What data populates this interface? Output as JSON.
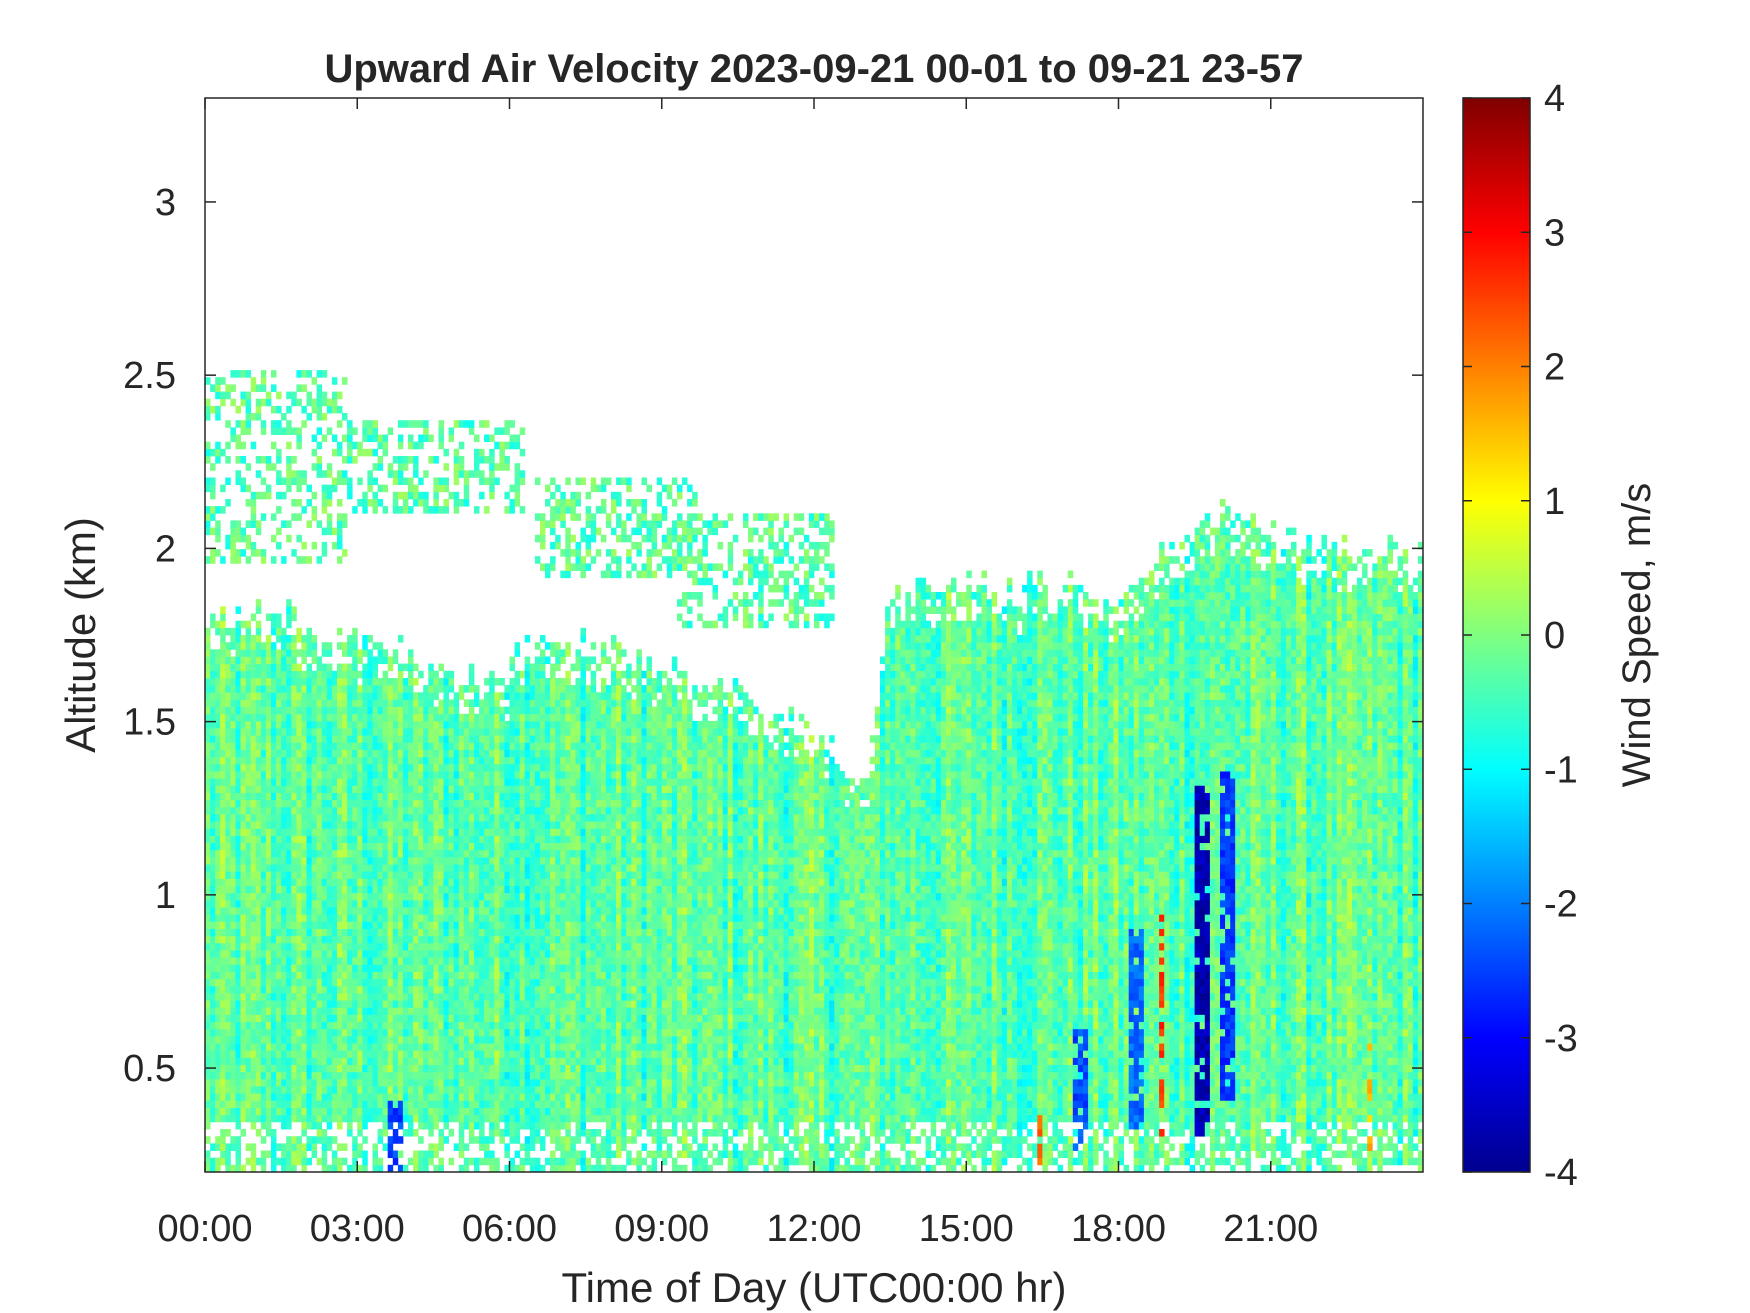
{
  "chart_data": {
    "type": "heatmap",
    "title": "Upward Air Velocity 2023-09-21 00-01 to 09-21 23-57",
    "xlabel": "Time of Day (UTC00:00 hr)",
    "ylabel": "Altitude (km)",
    "colorbar_label": "Wind Speed, m/s",
    "x_unit": "hours UTC",
    "xlim": [
      0,
      24
    ],
    "ylim": [
      0.2,
      3.3
    ],
    "clim": [
      -4,
      4
    ],
    "colormap": "jet",
    "grid": false,
    "x_ticks": [
      {
        "value": 0,
        "label": "00:00"
      },
      {
        "value": 3,
        "label": "03:00"
      },
      {
        "value": 6,
        "label": "06:00"
      },
      {
        "value": 9,
        "label": "09:00"
      },
      {
        "value": 12,
        "label": "12:00"
      },
      {
        "value": 15,
        "label": "15:00"
      },
      {
        "value": 18,
        "label": "18:00"
      },
      {
        "value": 21,
        "label": "21:00"
      }
    ],
    "y_ticks": [
      {
        "value": 0.5,
        "label": "0.5"
      },
      {
        "value": 1,
        "label": "1"
      },
      {
        "value": 1.5,
        "label": "1.5"
      },
      {
        "value": 2,
        "label": "2"
      },
      {
        "value": 2.5,
        "label": "2.5"
      },
      {
        "value": 3,
        "label": "3"
      }
    ],
    "colorbar_ticks": [
      {
        "value": 4,
        "label": "4"
      },
      {
        "value": 3,
        "label": "3"
      },
      {
        "value": 2,
        "label": "2"
      },
      {
        "value": 1,
        "label": "1"
      },
      {
        "value": 0,
        "label": "0"
      },
      {
        "value": -1,
        "label": "-1"
      },
      {
        "value": -2,
        "label": "-2"
      },
      {
        "value": -3,
        "label": "-3"
      },
      {
        "value": -4,
        "label": "-4"
      }
    ],
    "signal_top_km_by_hour": [
      {
        "hour": 0,
        "top": 1.82
      },
      {
        "hour": 1,
        "top": 1.8
      },
      {
        "hour": 1.5,
        "top": 1.85
      },
      {
        "hour": 2,
        "top": 1.75
      },
      {
        "hour": 3,
        "top": 1.73
      },
      {
        "hour": 4,
        "top": 1.68
      },
      {
        "hour": 5,
        "top": 1.62
      },
      {
        "hour": 5.9,
        "top": 1.6
      },
      {
        "hour": 6,
        "top": 1.72
      },
      {
        "hour": 7,
        "top": 1.72
      },
      {
        "hour": 8,
        "top": 1.7
      },
      {
        "hour": 9,
        "top": 1.65
      },
      {
        "hour": 10,
        "top": 1.6
      },
      {
        "hour": 11,
        "top": 1.55
      },
      {
        "hour": 12,
        "top": 1.45
      },
      {
        "hour": 13,
        "top": 1.3
      },
      {
        "hour": 13.4,
        "top": 1.85
      },
      {
        "hour": 14,
        "top": 1.88
      },
      {
        "hour": 15,
        "top": 1.9
      },
      {
        "hour": 16,
        "top": 1.88
      },
      {
        "hour": 17,
        "top": 1.88
      },
      {
        "hour": 18,
        "top": 1.85
      },
      {
        "hour": 19,
        "top": 2.0
      },
      {
        "hour": 20,
        "top": 2.1
      },
      {
        "hour": 21,
        "top": 2.05
      },
      {
        "hour": 22,
        "top": 2.0
      },
      {
        "hour": 23,
        "top": 2.0
      },
      {
        "hour": 24,
        "top": 2.0
      }
    ],
    "typical_value_ms": -0.3,
    "upper_layer_patches": [
      {
        "hour_start": 0,
        "hour_end": 2.8,
        "alt_low": 1.95,
        "alt_high": 2.5
      },
      {
        "hour_start": 2.8,
        "hour_end": 6.2,
        "alt_low": 2.1,
        "alt_high": 2.35
      },
      {
        "hour_start": 6.5,
        "hour_end": 9.7,
        "alt_low": 1.9,
        "alt_high": 2.2
      },
      {
        "hour_start": 9.3,
        "hour_end": 12.3,
        "alt_low": 1.75,
        "alt_high": 2.1
      }
    ],
    "downdraft_events": [
      {
        "hour": 19.6,
        "alt_low": 0.3,
        "alt_high": 1.3,
        "value": -3.6
      },
      {
        "hour": 20.1,
        "alt_low": 0.4,
        "alt_high": 1.35,
        "value": -2.6
      },
      {
        "hour": 18.3,
        "alt_low": 0.3,
        "alt_high": 0.9,
        "value": -2.2
      },
      {
        "hour": 17.2,
        "alt_low": 0.25,
        "alt_high": 0.6,
        "value": -2.4
      },
      {
        "hour": 3.7,
        "alt_low": 0.2,
        "alt_high": 0.4,
        "value": -2.5
      }
    ],
    "updraft_events": [
      {
        "hour": 18.8,
        "alt_low": 0.3,
        "alt_high": 1.0,
        "value": 2.6
      },
      {
        "hour": 16.4,
        "alt_low": 0.2,
        "alt_high": 0.35,
        "value": 2.3
      },
      {
        "hour": 22.9,
        "alt_low": 0.25,
        "alt_high": 0.6,
        "value": 1.5
      }
    ]
  }
}
